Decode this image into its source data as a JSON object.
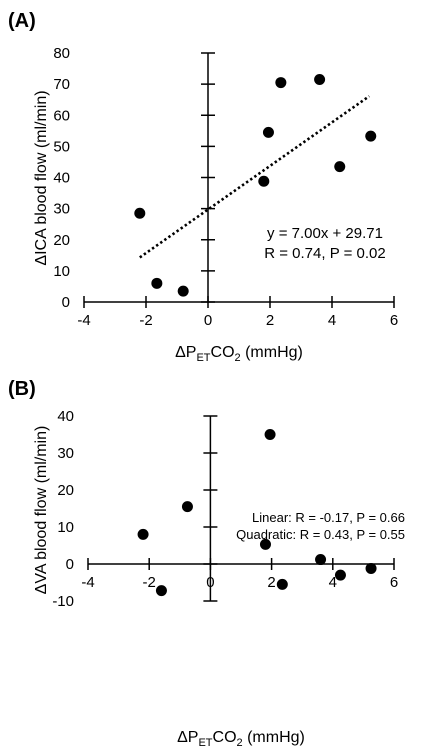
{
  "chart_data": [
    {
      "type": "scatter",
      "panel_label": "(A)",
      "ylabel": "ΔICA  blood flow (ml/min)",
      "xlabel": {
        "pre": "ΔP",
        "sub1": "ET",
        "mid": "CO",
        "sub2": "2",
        "post": " (mmHg)"
      },
      "xlim": [
        -4,
        6
      ],
      "ylim": [
        0,
        80
      ],
      "x_ticks": [
        -4,
        -2,
        0,
        2,
        4,
        6
      ],
      "y_ticks": [
        0,
        10,
        20,
        30,
        40,
        50,
        60,
        70,
        80
      ],
      "points": [
        {
          "x": -2.2,
          "y": 28.5
        },
        {
          "x": -1.65,
          "y": 6.0
        },
        {
          "x": -0.8,
          "y": 3.5
        },
        {
          "x": 1.8,
          "y": 38.8
        },
        {
          "x": 1.95,
          "y": 54.5
        },
        {
          "x": 2.35,
          "y": 70.5
        },
        {
          "x": 3.6,
          "y": 71.5
        },
        {
          "x": 4.25,
          "y": 43.5
        },
        {
          "x": 5.25,
          "y": 53.3
        }
      ],
      "fit": {
        "slope": 7.0,
        "intercept": 29.71,
        "x_range": [
          -2.2,
          5.2
        ]
      },
      "annotations": [
        "y = 7.00x + 29.71",
        "R = 0.74, P = 0.02"
      ]
    },
    {
      "type": "scatter",
      "panel_label": "(B)",
      "ylabel": "ΔVA  blood flow (ml/min)",
      "xlabel": {
        "pre": "ΔP",
        "sub1": "ET",
        "mid": "CO",
        "sub2": "2",
        "post": " (mmHg)"
      },
      "xlim": [
        -4,
        6
      ],
      "ylim": [
        -10,
        40
      ],
      "x_ticks": [
        -4,
        -2,
        0,
        2,
        4,
        6
      ],
      "y_ticks": [
        -10,
        0,
        10,
        20,
        30,
        40
      ],
      "points": [
        {
          "x": -2.2,
          "y": 8.0
        },
        {
          "x": -1.6,
          "y": -7.2
        },
        {
          "x": -0.75,
          "y": 15.5
        },
        {
          "x": 1.8,
          "y": 5.3
        },
        {
          "x": 1.95,
          "y": 35.0
        },
        {
          "x": 2.35,
          "y": -5.5
        },
        {
          "x": 3.6,
          "y": 1.2
        },
        {
          "x": 4.25,
          "y": -3.0
        },
        {
          "x": 5.25,
          "y": -1.2
        }
      ],
      "annotations": [
        "Linear: R = -0.17, P = 0.66",
        "Quadratic: R = 0.43, P = 0.55"
      ]
    }
  ]
}
